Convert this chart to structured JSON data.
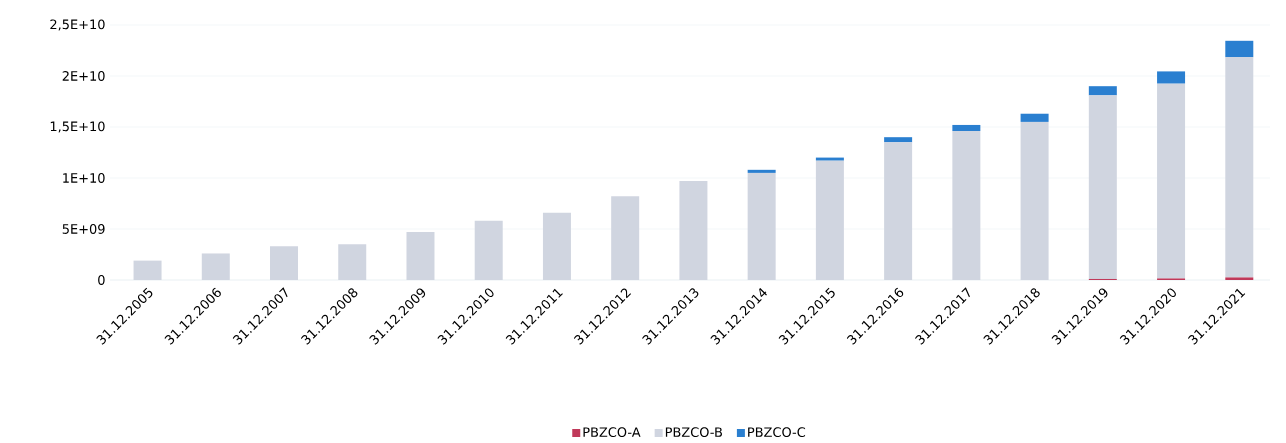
{
  "chart_data": {
    "type": "bar",
    "stacked": true,
    "categories": [
      "31.12.2005",
      "31.12.2006",
      "31.12.2007",
      "31.12.2008",
      "31.12.2009",
      "31.12.2010",
      "31.12.2011",
      "31.12.2012",
      "31.12.2013",
      "31.12.2014",
      "31.12.2015",
      "31.12.2016",
      "31.12.2017",
      "31.12.2018",
      "31.12.2019",
      "31.12.2020",
      "31.12.2021"
    ],
    "series": [
      {
        "name": "PBZCO-A",
        "color": "#c0395a",
        "values": [
          0,
          0,
          0,
          0,
          0,
          0,
          0,
          0,
          0,
          0,
          0,
          0,
          0,
          0,
          100000000,
          150000000,
          250000000
        ]
      },
      {
        "name": "PBZCO-B",
        "color": "#d0d5e0",
        "values": [
          1900000000,
          2600000000,
          3300000000,
          3500000000,
          4700000000,
          5800000000,
          6600000000,
          8200000000,
          9700000000,
          10500000000,
          11700000000,
          13500000000,
          14600000000,
          15500000000,
          18000000000,
          19100000000,
          21600000000
        ]
      },
      {
        "name": "PBZCO-C",
        "color": "#2a7fd0",
        "values": [
          0,
          0,
          0,
          0,
          0,
          0,
          0,
          0,
          0,
          300000000,
          300000000,
          500000000,
          600000000,
          800000000,
          900000000,
          1200000000,
          1600000000
        ]
      }
    ],
    "ylim": [
      0,
      25000000000
    ],
    "yticks": [
      0,
      {
        "value": 5000000000,
        "label": "5E+09"
      },
      {
        "value": 10000000000,
        "label": "1E+10"
      },
      {
        "value": 15000000000,
        "label": "1,5E+10"
      },
      {
        "value": 20000000000,
        "label": "2E+10"
      },
      {
        "value": 25000000000,
        "label": "2,5E+10"
      }
    ],
    "grid": "y",
    "legend": "bottom"
  }
}
